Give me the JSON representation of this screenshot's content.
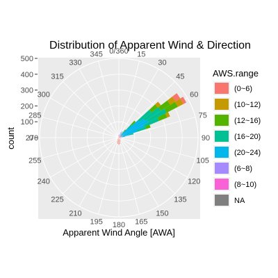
{
  "chart_data": {
    "type": "polar-stacked-bar",
    "title": "Distribution of Apparent Wind & Direction",
    "xlabel": "Apparent Wind Angle [AWA]",
    "ylabel": "count",
    "angle_ticks": [
      "0/360",
      "15",
      "30",
      "45",
      "60",
      "75",
      "90",
      "105",
      "120",
      "135",
      "150",
      "165",
      "180",
      "195",
      "210",
      "225",
      "240",
      "255",
      "270",
      "285",
      "300",
      "315",
      "330",
      "345"
    ],
    "radial_ticks": [
      {
        "value": 0,
        "label": "0"
      },
      {
        "value": 100,
        "label": "100"
      },
      {
        "value": 200,
        "label": "200"
      },
      {
        "value": 300,
        "label": "300"
      },
      {
        "value": 400,
        "label": "400"
      },
      {
        "value": 500,
        "label": "500"
      }
    ],
    "rmax": 500,
    "sector_width_deg": 5,
    "legend": {
      "title": "AWS.range",
      "position": "right",
      "items": [
        {
          "label": "(0~6)",
          "color": "#F8766D"
        },
        {
          "label": "(10~12)",
          "color": "#C49A00"
        },
        {
          "label": "(12~16)",
          "color": "#53B400"
        },
        {
          "label": "(16~20)",
          "color": "#00C094"
        },
        {
          "label": "(20~24)",
          "color": "#00B6EB"
        },
        {
          "label": "(6~8)",
          "color": "#A58AFF"
        },
        {
          "label": "(8~10)",
          "color": "#FB61D7"
        },
        {
          "label": "NA",
          "color": "#7F7F7F"
        }
      ]
    },
    "bars": [
      {
        "angle": 40,
        "segments": [
          {
            "cls": "(0~6)",
            "v": 10
          },
          {
            "cls": "(20~24)",
            "v": 25
          },
          {
            "cls": "(16~20)",
            "v": 15
          },
          {
            "cls": "(12~16)",
            "v": 15
          }
        ]
      },
      {
        "angle": 45,
        "segments": [
          {
            "cls": "(0~6)",
            "v": 15
          },
          {
            "cls": "(20~24)",
            "v": 60
          },
          {
            "cls": "(16~20)",
            "v": 40
          },
          {
            "cls": "(12~16)",
            "v": 30
          }
        ]
      },
      {
        "angle": 50,
        "segments": [
          {
            "cls": "(0~6)",
            "v": 20
          },
          {
            "cls": "(20~24)",
            "v": 140
          },
          {
            "cls": "(16~20)",
            "v": 100
          },
          {
            "cls": "(12~16)",
            "v": 50
          },
          {
            "cls": "(10~12)",
            "v": 25
          }
        ]
      },
      {
        "angle": 55,
        "segments": [
          {
            "cls": "(0~6)",
            "v": 25
          },
          {
            "cls": "(20~24)",
            "v": 170
          },
          {
            "cls": "(16~20)",
            "v": 120
          },
          {
            "cls": "(12~16)",
            "v": 70
          },
          {
            "cls": "(10~12)",
            "v": 40
          },
          {
            "cls": "(0~6)",
            "v": 35
          }
        ]
      },
      {
        "angle": 60,
        "segments": [
          {
            "cls": "(0~6)",
            "v": 30
          },
          {
            "cls": "(20~24)",
            "v": 180
          },
          {
            "cls": "(16~20)",
            "v": 130
          },
          {
            "cls": "(12~16)",
            "v": 80
          },
          {
            "cls": "(10~12)",
            "v": 40
          },
          {
            "cls": "(0~6)",
            "v": 20
          }
        ]
      },
      {
        "angle": 65,
        "segments": [
          {
            "cls": "(0~6)",
            "v": 25
          },
          {
            "cls": "(20~24)",
            "v": 150
          },
          {
            "cls": "(16~20)",
            "v": 100
          },
          {
            "cls": "(12~16)",
            "v": 55
          },
          {
            "cls": "(10~12)",
            "v": 20
          }
        ]
      },
      {
        "angle": 70,
        "segments": [
          {
            "cls": "(0~6)",
            "v": 20
          },
          {
            "cls": "(20~24)",
            "v": 100
          },
          {
            "cls": "(16~20)",
            "v": 60
          },
          {
            "cls": "(12~16)",
            "v": 30
          }
        ]
      },
      {
        "angle": 75,
        "segments": [
          {
            "cls": "(0~6)",
            "v": 15
          },
          {
            "cls": "(20~24)",
            "v": 55
          },
          {
            "cls": "(16~20)",
            "v": 25
          }
        ]
      },
      {
        "angle": 80,
        "segments": [
          {
            "cls": "(0~6)",
            "v": 10
          },
          {
            "cls": "(20~24)",
            "v": 30
          }
        ]
      },
      {
        "angle": 30,
        "segments": [
          {
            "cls": "(0~6)",
            "v": 10
          },
          {
            "cls": "(20~24)",
            "v": 25
          },
          {
            "cls": "(6~8)",
            "v": 10
          }
        ]
      },
      {
        "angle": 20,
        "segments": [
          {
            "cls": "(0~6)",
            "v": 10
          },
          {
            "cls": "(6~8)",
            "v": 15
          },
          {
            "cls": "(8~10)",
            "v": 10
          }
        ]
      },
      {
        "angle": 10,
        "segments": [
          {
            "cls": "(0~6)",
            "v": 10
          },
          {
            "cls": "(8~10)",
            "v": 10
          }
        ]
      },
      {
        "angle": 0,
        "segments": [
          {
            "cls": "(0~6)",
            "v": 10
          },
          {
            "cls": "(8~10)",
            "v": 8
          }
        ]
      },
      {
        "angle": 350,
        "segments": [
          {
            "cls": "(0~6)",
            "v": 8
          },
          {
            "cls": "(8~10)",
            "v": 8
          }
        ]
      },
      {
        "angle": 340,
        "segments": [
          {
            "cls": "(0~6)",
            "v": 6
          },
          {
            "cls": "(8~10)",
            "v": 5
          }
        ]
      },
      {
        "angle": 320,
        "segments": [
          {
            "cls": "(0~6)",
            "v": 6
          }
        ]
      },
      {
        "angle": 300,
        "segments": [
          {
            "cls": "(0~6)",
            "v": 5
          }
        ]
      },
      {
        "angle": 100,
        "segments": [
          {
            "cls": "(0~6)",
            "v": 8
          },
          {
            "cls": "(6~8)",
            "v": 6
          }
        ]
      },
      {
        "angle": 120,
        "segments": [
          {
            "cls": "(0~6)",
            "v": 10
          },
          {
            "cls": "(6~8)",
            "v": 8
          }
        ]
      },
      {
        "angle": 150,
        "segments": [
          {
            "cls": "(0~6)",
            "v": 18
          },
          {
            "cls": "(6~8)",
            "v": 5
          }
        ]
      },
      {
        "angle": 160,
        "segments": [
          {
            "cls": "(0~6)",
            "v": 28
          }
        ]
      },
      {
        "angle": 170,
        "segments": [
          {
            "cls": "(0~6)",
            "v": 40
          }
        ]
      },
      {
        "angle": 180,
        "segments": [
          {
            "cls": "(0~6)",
            "v": 45
          }
        ]
      },
      {
        "angle": 190,
        "segments": [
          {
            "cls": "(0~6)",
            "v": 40
          }
        ]
      },
      {
        "angle": 200,
        "segments": [
          {
            "cls": "(0~6)",
            "v": 32
          }
        ]
      },
      {
        "angle": 210,
        "segments": [
          {
            "cls": "(0~6)",
            "v": 20
          }
        ]
      },
      {
        "angle": 230,
        "segments": [
          {
            "cls": "(0~6)",
            "v": 10
          }
        ]
      },
      {
        "angle": 260,
        "segments": [
          {
            "cls": "(0~6)",
            "v": 6
          }
        ]
      }
    ]
  }
}
